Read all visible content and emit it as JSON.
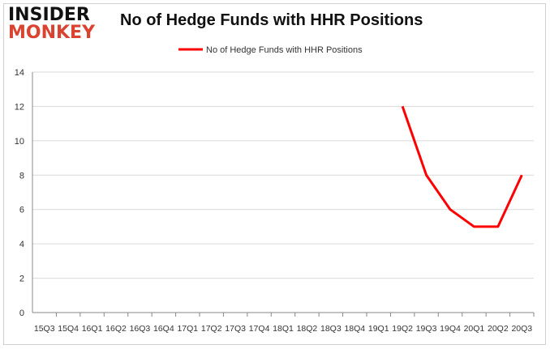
{
  "logo": {
    "line1": "INSIDER",
    "line2": "MONKEY"
  },
  "chart_data": {
    "type": "line",
    "title": "No of Hedge Funds with HHR Positions",
    "categories": [
      "15Q3",
      "15Q4",
      "16Q1",
      "16Q2",
      "16Q3",
      "16Q4",
      "17Q1",
      "17Q2",
      "17Q3",
      "17Q4",
      "18Q1",
      "18Q2",
      "18Q3",
      "18Q4",
      "19Q1",
      "19Q2",
      "19Q3",
      "19Q4",
      "20Q1",
      "20Q2",
      "20Q3"
    ],
    "series": [
      {
        "name": "No of Hedge Funds with HHR Positions",
        "color": "#ff0000",
        "values": [
          null,
          null,
          null,
          null,
          null,
          null,
          null,
          null,
          null,
          null,
          null,
          null,
          null,
          null,
          null,
          12,
          8,
          6,
          5,
          5,
          8
        ]
      }
    ],
    "ylim": [
      0,
      14
    ],
    "yticks": [
      0,
      2,
      4,
      6,
      8,
      10,
      12,
      14
    ],
    "grid": true,
    "legend": "top-center",
    "xlabel": "",
    "ylabel": ""
  }
}
